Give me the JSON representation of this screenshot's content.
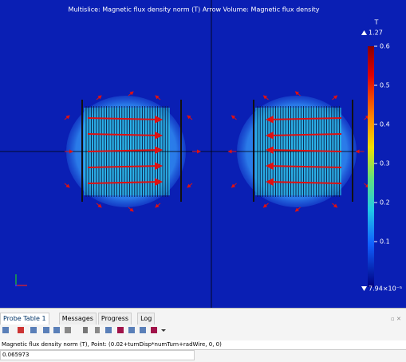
{
  "plot": {
    "title": "Multislice: Magnetic flux density norm (T)  Arrow Volume: Magnetic flux density",
    "colorbar": {
      "unit": "T",
      "max_label": "1.27",
      "min_label": "7.94×10⁻⁵",
      "ticks": [
        0.6,
        0.5,
        0.4,
        0.3,
        0.2,
        0.1
      ]
    }
  },
  "tabs": [
    "Probe Table 1",
    "Messages",
    "Progress",
    "Log"
  ],
  "table": {
    "header": "Magnetic flux density norm (T), Point: (0.02+turnDisp*numTurn+radWire, 0, 0)",
    "rows": [
      [
        "0.065973"
      ]
    ]
  }
}
